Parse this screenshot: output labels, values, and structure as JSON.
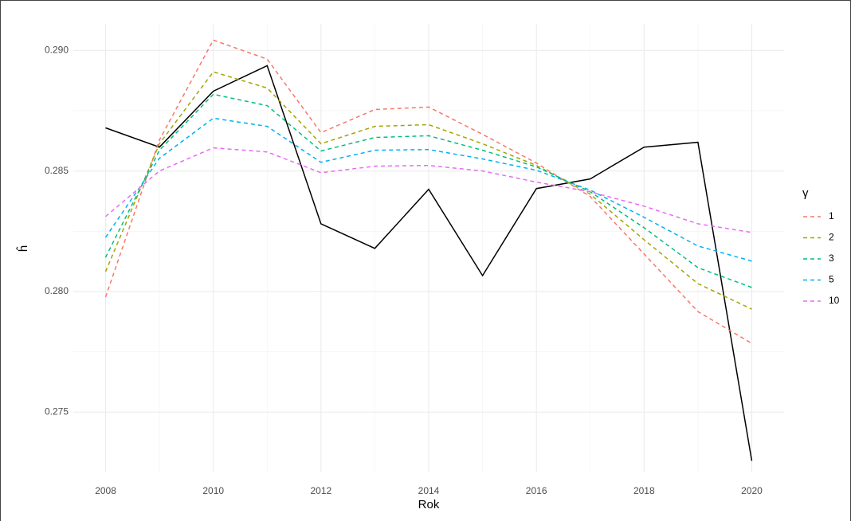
{
  "chart_data": {
    "type": "line",
    "x_label": "Rok",
    "y_label": "ĥ",
    "legend_title": "γ",
    "legend": "right",
    "grid": true,
    "x": [
      2008,
      2009,
      2010,
      2011,
      2012,
      2013,
      2014,
      2015,
      2016,
      2017,
      2018,
      2019,
      2020
    ],
    "xlim": [
      2007.4,
      2020.6
    ],
    "xticks": [
      2008,
      2010,
      2012,
      2014,
      2016,
      2018,
      2020
    ],
    "x_minor_ticks": [
      2009,
      2011,
      2013,
      2015,
      2017,
      2019
    ],
    "ylim": [
      0.2725,
      0.2911
    ],
    "yticks": [
      0.275,
      {
        "value": 0.28,
        "label": "0.280"
      },
      0.285,
      {
        "value": 0.29,
        "label": "0.290"
      }
    ],
    "y_minor_ticks": [
      0.2775,
      0.2825,
      0.2875
    ],
    "series": [
      {
        "color": "#000000",
        "linetype": "solid",
        "values": [
          0.28679,
          0.28599,
          0.28831,
          0.28937,
          0.28281,
          0.28179,
          0.28424,
          0.28066,
          0.28427,
          0.28467,
          0.28599,
          0.28619,
          0.27298
        ]
      },
      {
        "name": "1",
        "color": "#F8766D",
        "linetype": "dashed",
        "values": [
          0.27977,
          0.28629,
          0.29043,
          0.28964,
          0.28659,
          0.28755,
          0.28765,
          0.28652,
          0.28533,
          0.28394,
          0.28156,
          0.27917,
          0.27785
        ]
      },
      {
        "name": "2",
        "color": "#A3A500",
        "linetype": "dashed",
        "values": [
          0.28083,
          0.28613,
          0.28911,
          0.28844,
          0.28613,
          0.28685,
          0.28692,
          0.28613,
          0.28523,
          0.28404,
          0.28215,
          0.28033,
          0.27927
        ]
      },
      {
        "name": "3",
        "color": "#00BF7D",
        "linetype": "dashed",
        "values": [
          0.28142,
          0.28586,
          0.28818,
          0.28771,
          0.28583,
          0.28639,
          0.28646,
          0.28586,
          0.28517,
          0.28414,
          0.28265,
          0.28099,
          0.28017
        ]
      },
      {
        "name": "5",
        "color": "#00B0F6",
        "linetype": "dashed",
        "values": [
          0.28225,
          0.28553,
          0.28719,
          0.28685,
          0.28536,
          0.28586,
          0.28589,
          0.2855,
          0.28503,
          0.28421,
          0.28308,
          0.28189,
          0.28126
        ]
      },
      {
        "name": "10",
        "color": "#E76BF3",
        "linetype": "dashed",
        "values": [
          0.28311,
          0.285,
          0.28596,
          0.28579,
          0.28493,
          0.2852,
          0.28523,
          0.285,
          0.28454,
          0.28414,
          0.28354,
          0.28281,
          0.28245
        ]
      }
    ]
  }
}
